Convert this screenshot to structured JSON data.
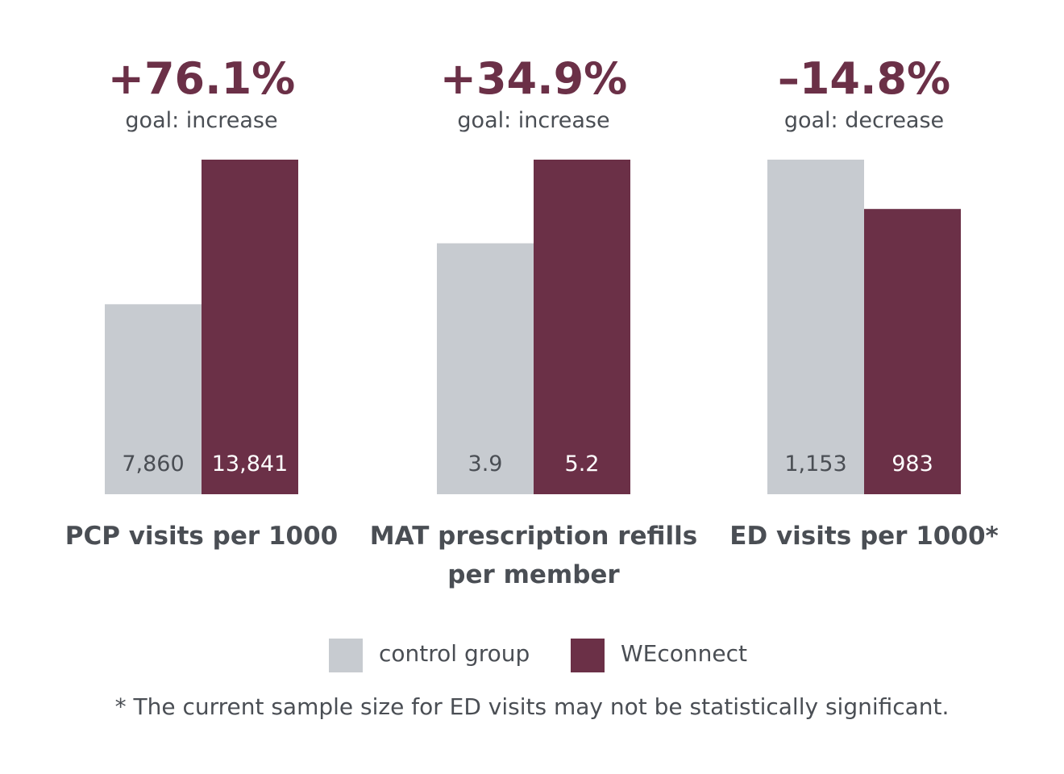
{
  "chart_data": {
    "type": "bar",
    "colors": {
      "control": "#c7cbd0",
      "weconnect": "#6b3047",
      "change": "#6b3047",
      "text": "#4a4e54"
    },
    "series": [
      {
        "name": "control group"
      },
      {
        "name": "WEconnect"
      }
    ],
    "groups": [
      {
        "category": "PCP visits per 1000",
        "category_lines": [
          "PCP visits per 1000"
        ],
        "change": "+76.1%",
        "goal": "goal: increase",
        "values": [
          7860,
          13841
        ],
        "labels": [
          "7,860",
          "13,841"
        ]
      },
      {
        "category": "MAT prescription refills per member",
        "category_lines": [
          "MAT prescription refills",
          "per member"
        ],
        "change": "+34.9%",
        "goal": "goal: increase",
        "values": [
          3.9,
          5.2
        ],
        "labels": [
          "3.9",
          "5.2"
        ]
      },
      {
        "category": "ED visits per 1000*",
        "category_lines": [
          "ED visits per 1000*"
        ],
        "change": "–14.8%",
        "goal": "goal: decrease",
        "values": [
          1153,
          983
        ],
        "labels": [
          "1,153",
          "983"
        ]
      }
    ]
  },
  "footnote": "* The current sample size for ED visits may not be statistically significant."
}
